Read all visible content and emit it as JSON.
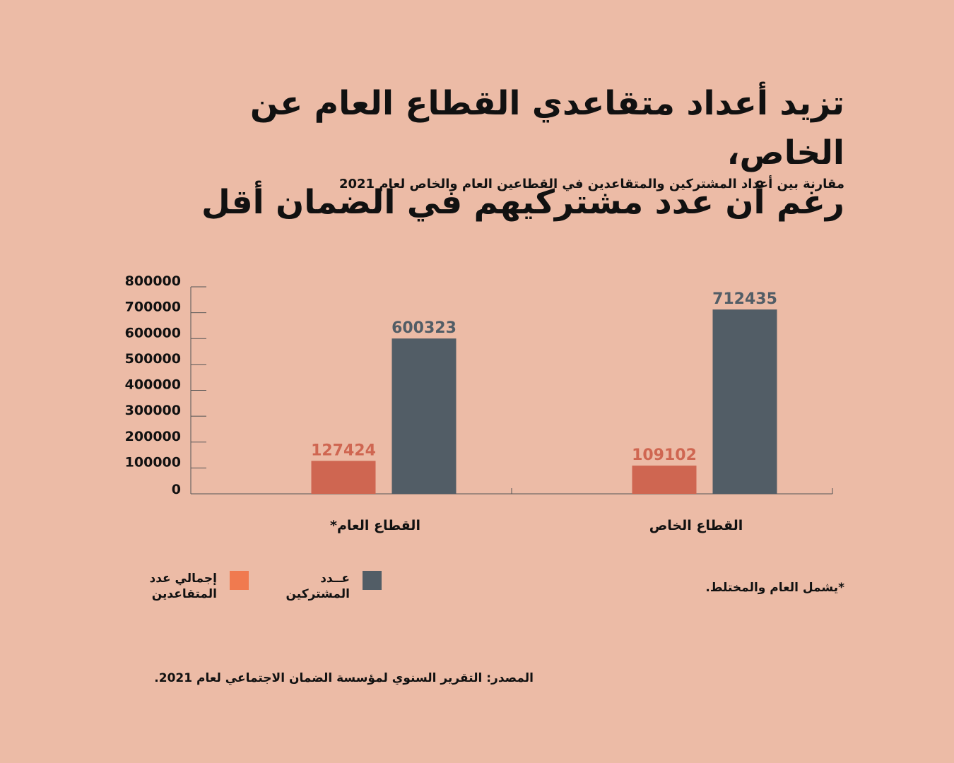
{
  "title_line1": "تزيد أعداد متقاعدي القطاع العام عن الخاص،",
  "title_line2": "رغم أن عدد مشتركيهم في الضمان أقل",
  "subtitle": "مقارنة بين أعداد المشتركين والمتقاعدين في القطاعين العام والخاص لعام 2021",
  "footnote": "*يشمل العام والمختلط.",
  "source": "المصدر: التقرير السنوي لمؤسسة الضمان الاجتماعي لعام 2021.",
  "legend": {
    "retirees": "إجمالي عدد المتقاعدين",
    "subscribers": "عــدد المشتركين"
  },
  "colors": {
    "background": "#ecbba6",
    "retirees": "#cf6651",
    "subscribers": "#525d66",
    "retirees_legend": "#f07a4f",
    "retirees_label": "#cf6651",
    "subscribers_label": "#525d66"
  },
  "chart_data": {
    "type": "bar",
    "categories": [
      "القطاع العام*",
      "القطاع الخاص"
    ],
    "series": [
      {
        "name": "إجمالي عدد المتقاعدين",
        "values": [
          127424,
          109102
        ]
      },
      {
        "name": "عــدد المشتركين",
        "values": [
          600323,
          712435
        ]
      }
    ],
    "ylim": [
      0,
      800000
    ],
    "yticks": [
      "0",
      "100000",
      "200000",
      "300000",
      "400000",
      "500000",
      "600000",
      "700000",
      "800000"
    ],
    "legend_position": "bottom-left",
    "grid": false
  }
}
